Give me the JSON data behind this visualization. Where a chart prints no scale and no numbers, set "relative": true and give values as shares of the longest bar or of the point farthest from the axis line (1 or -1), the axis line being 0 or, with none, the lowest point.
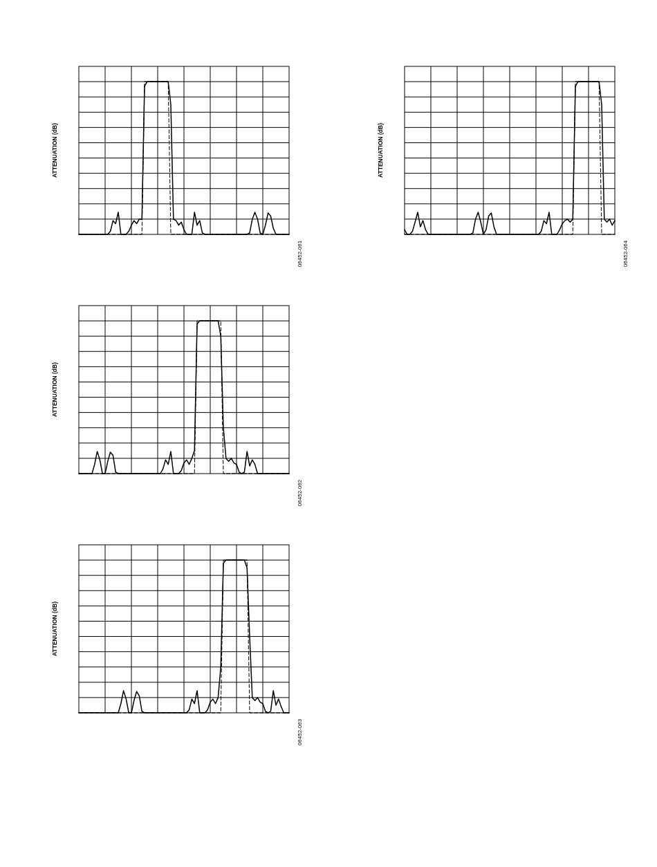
{
  "chart_data": [
    {
      "type": "line",
      "ylabel": "ATTENUATION (dB)",
      "relative": true,
      "grid": true,
      "annotations": [
        "06452-061"
      ],
      "categories": [
        null,
        null,
        null,
        null,
        null,
        null,
        null,
        null,
        null,
        null,
        null,
        null,
        null,
        null,
        null,
        null,
        null,
        null,
        null,
        null,
        null,
        null,
        null,
        null,
        null,
        null,
        null,
        null,
        null,
        null,
        null,
        null,
        null,
        null,
        null,
        null,
        null,
        null,
        null,
        null,
        null,
        null,
        null,
        null,
        null,
        null,
        null,
        null,
        null,
        null,
        null,
        null,
        null,
        null,
        null,
        null,
        null,
        null,
        null,
        null,
        null,
        null,
        null,
        null,
        null,
        null,
        null,
        null,
        null,
        null,
        null,
        null,
        null,
        null,
        null,
        null,
        null,
        null,
        null,
        null,
        null
      ],
      "series": [
        {
          "color": "#000000",
          "line_style": "solid",
          "values": [
            0,
            0,
            0,
            0,
            0,
            0,
            0,
            0,
            0,
            0,
            0,
            0,
            0.02,
            0.09,
            0.07,
            0.145,
            0,
            0,
            0,
            0.02,
            0.06,
            0.09,
            0.07,
            0.1,
            0.1,
            0.97,
            1,
            1,
            1,
            1,
            1,
            1,
            1,
            1,
            1,
            0.85,
            0.1,
            0.09,
            0.06,
            0.08,
            0.03,
            0,
            0,
            0,
            0.145,
            0.06,
            0.09,
            0.01,
            0,
            0,
            0,
            0,
            0,
            0,
            0,
            0,
            0,
            0,
            0,
            0,
            0,
            0,
            0,
            0,
            0,
            0.01,
            0.1,
            0.145,
            0.1,
            0.01,
            0,
            0.06,
            0.14,
            0.12,
            0.04,
            0,
            0,
            0,
            0,
            0,
            0
          ]
        },
        {
          "color": "#000000",
          "line_style": "dashed",
          "values": [
            0,
            0,
            0,
            0,
            0,
            0,
            0,
            0,
            0,
            0,
            0,
            0,
            0,
            0,
            0,
            0,
            0,
            0,
            0,
            0,
            0,
            0,
            0,
            0,
            0,
            1,
            1,
            1,
            1,
            1,
            1,
            1,
            1,
            1,
            1,
            0,
            0,
            0,
            0,
            0,
            0,
            0,
            0,
            0,
            0,
            0,
            0,
            0,
            0,
            0,
            0,
            0,
            0,
            0,
            0,
            0,
            0,
            0,
            0,
            0,
            0,
            0,
            0,
            0,
            0,
            0,
            0,
            0,
            0,
            0,
            0,
            0,
            0,
            0,
            0,
            0,
            0,
            0,
            0,
            0,
            0
          ]
        }
      ]
    },
    {
      "type": "line",
      "ylabel": "ATTENUATION (dB)",
      "relative": true,
      "grid": true,
      "annotations": [
        "06452-064"
      ],
      "categories": [
        null,
        null,
        null,
        null,
        null,
        null,
        null,
        null,
        null,
        null,
        null,
        null,
        null,
        null,
        null,
        null,
        null,
        null,
        null,
        null,
        null,
        null,
        null,
        null,
        null,
        null,
        null,
        null,
        null,
        null,
        null,
        null,
        null,
        null,
        null,
        null,
        null,
        null,
        null,
        null,
        null,
        null,
        null,
        null,
        null,
        null,
        null,
        null,
        null,
        null,
        null,
        null,
        null,
        null,
        null,
        null,
        null,
        null,
        null,
        null,
        null,
        null,
        null,
        null,
        null,
        null,
        null,
        null,
        null,
        null,
        null,
        null,
        null,
        null,
        null,
        null,
        null,
        null,
        null,
        null,
        null
      ],
      "series": [
        {
          "color": "#000000",
          "line_style": "solid",
          "values": [
            0.03,
            0,
            0,
            0.02,
            0.08,
            0.145,
            0.05,
            0.09,
            0.03,
            0,
            0,
            0,
            0,
            0,
            0,
            0,
            0,
            0,
            0,
            0,
            0,
            0,
            0,
            0,
            0,
            0,
            0.01,
            0.1,
            0.145,
            0.08,
            0,
            0.03,
            0.12,
            0.14,
            0.05,
            0,
            0,
            0,
            0,
            0,
            0,
            0,
            0,
            0,
            0,
            0,
            0,
            0,
            0,
            0,
            0,
            0,
            0.02,
            0.09,
            0.07,
            0.145,
            0,
            0,
            0,
            0.03,
            0.07,
            0.09,
            0.1,
            0.08,
            0.1,
            0.97,
            1,
            1,
            1,
            1,
            1,
            1,
            1,
            1,
            1,
            0.85,
            0.1,
            0.08,
            0.1,
            0.06,
            0.09
          ]
        },
        {
          "color": "#000000",
          "line_style": "dashed",
          "values": [
            0,
            0,
            0,
            0,
            0,
            0,
            0,
            0,
            0,
            0,
            0,
            0,
            0,
            0,
            0,
            0,
            0,
            0,
            0,
            0,
            0,
            0,
            0,
            0,
            0,
            0,
            0,
            0,
            0,
            0,
            0,
            0,
            0,
            0,
            0,
            0,
            0,
            0,
            0,
            0,
            0,
            0,
            0,
            0,
            0,
            0,
            0,
            0,
            0,
            0,
            0,
            0,
            0,
            0,
            0,
            0,
            0,
            0,
            0,
            0,
            0,
            0,
            0,
            0,
            0,
            1,
            1,
            1,
            1,
            1,
            1,
            1,
            1,
            1,
            1,
            0,
            0,
            0,
            0,
            0,
            0
          ]
        }
      ]
    },
    {
      "type": "line",
      "ylabel": "ATTENUATION (dB)",
      "relative": true,
      "grid": true,
      "annotations": [
        "06452-062"
      ],
      "categories": [
        null,
        null,
        null,
        null,
        null,
        null,
        null,
        null,
        null,
        null,
        null,
        null,
        null,
        null,
        null,
        null,
        null,
        null,
        null,
        null,
        null,
        null,
        null,
        null,
        null,
        null,
        null,
        null,
        null,
        null,
        null,
        null,
        null,
        null,
        null,
        null,
        null,
        null,
        null,
        null,
        null,
        null,
        null,
        null,
        null,
        null,
        null,
        null,
        null,
        null,
        null,
        null,
        null,
        null,
        null,
        null,
        null,
        null,
        null,
        null,
        null,
        null,
        null,
        null,
        null,
        null,
        null,
        null,
        null,
        null,
        null,
        null,
        null,
        null,
        null,
        null,
        null,
        null,
        null,
        null,
        null
      ],
      "series": [
        {
          "color": "#000000",
          "line_style": "solid",
          "values": [
            0,
            0,
            0,
            0,
            0,
            0,
            0.06,
            0.145,
            0.09,
            0,
            0,
            0.08,
            0.14,
            0.12,
            0.01,
            0,
            0,
            0,
            0,
            0,
            0,
            0,
            0,
            0,
            0,
            0,
            0,
            0,
            0,
            0,
            0,
            0,
            0.03,
            0.09,
            0.06,
            0.145,
            0,
            0,
            0,
            0.02,
            0.07,
            0.09,
            0.06,
            0.1,
            0.15,
            0.98,
            1,
            1,
            1,
            1,
            1,
            1,
            1,
            1,
            0.9,
            0.3,
            0.1,
            0.08,
            0.1,
            0.07,
            0.06,
            0.01,
            0,
            0.01,
            0.145,
            0.05,
            0.09,
            0.06,
            0,
            0,
            0,
            0,
            0,
            0,
            0,
            0,
            0,
            0,
            0,
            0,
            0
          ]
        },
        {
          "color": "#000000",
          "line_style": "dashed",
          "values": [
            0,
            0,
            0,
            0,
            0,
            0,
            0,
            0,
            0,
            0,
            0,
            0,
            0,
            0,
            0,
            0,
            0,
            0,
            0,
            0,
            0,
            0,
            0,
            0,
            0,
            0,
            0,
            0,
            0,
            0,
            0,
            0,
            0,
            0,
            0,
            0,
            0,
            0,
            0,
            0,
            0,
            0,
            0,
            0,
            0,
            1,
            1,
            1,
            1,
            1,
            1,
            1,
            1,
            1,
            1,
            0,
            0,
            0,
            0,
            0,
            0,
            0,
            0,
            0,
            0,
            0,
            0,
            0,
            0,
            0,
            0,
            0,
            0,
            0,
            0,
            0,
            0,
            0,
            0,
            0,
            0
          ]
        }
      ]
    },
    {
      "type": "line",
      "ylabel": "ATTENUATION (dB)",
      "relative": true,
      "grid": true,
      "annotations": [
        "06452-063"
      ],
      "categories": [
        null,
        null,
        null,
        null,
        null,
        null,
        null,
        null,
        null,
        null,
        null,
        null,
        null,
        null,
        null,
        null,
        null,
        null,
        null,
        null,
        null,
        null,
        null,
        null,
        null,
        null,
        null,
        null,
        null,
        null,
        null,
        null,
        null,
        null,
        null,
        null,
        null,
        null,
        null,
        null,
        null,
        null,
        null,
        null,
        null,
        null,
        null,
        null,
        null,
        null,
        null,
        null,
        null,
        null,
        null,
        null,
        null,
        null,
        null,
        null,
        null,
        null,
        null,
        null,
        null,
        null,
        null,
        null,
        null,
        null,
        null,
        null,
        null,
        null,
        null,
        null,
        null,
        null,
        null,
        null,
        null
      ],
      "series": [
        {
          "color": "#000000",
          "line_style": "solid",
          "values": [
            0,
            0,
            0,
            0,
            0,
            0,
            0,
            0,
            0,
            0,
            0,
            0,
            0,
            0,
            0,
            0,
            0.06,
            0.145,
            0.09,
            0,
            0,
            0.08,
            0.14,
            0.11,
            0.01,
            0,
            0,
            0,
            0,
            0,
            0,
            0,
            0,
            0,
            0,
            0,
            0,
            0,
            0,
            0,
            0,
            0,
            0.02,
            0.09,
            0.06,
            0.145,
            0,
            0,
            0,
            0.02,
            0.07,
            0.09,
            0.06,
            0.1,
            0.3,
            0.98,
            1,
            1,
            1,
            1,
            1,
            1,
            1,
            1,
            0.95,
            0.5,
            0.1,
            0.08,
            0.1,
            0.07,
            0.06,
            0.01,
            0,
            0.01,
            0.145,
            0.05,
            0.09,
            0.04,
            0,
            0,
            0
          ]
        },
        {
          "color": "#000000",
          "line_style": "dashed",
          "values": [
            0,
            0,
            0,
            0,
            0,
            0,
            0,
            0,
            0,
            0,
            0,
            0,
            0,
            0,
            0,
            0,
            0,
            0,
            0,
            0,
            0,
            0,
            0,
            0,
            0,
            0,
            0,
            0,
            0,
            0,
            0,
            0,
            0,
            0,
            0,
            0,
            0,
            0,
            0,
            0,
            0,
            0,
            0,
            0,
            0,
            0,
            0,
            0,
            0,
            0,
            0,
            0,
            0,
            0,
            0,
            1,
            1,
            1,
            1,
            1,
            1,
            1,
            1,
            1,
            1,
            0,
            0,
            0,
            0,
            0,
            0,
            0,
            0,
            0,
            0,
            0,
            0,
            0,
            0,
            0,
            0
          ]
        }
      ]
    }
  ]
}
